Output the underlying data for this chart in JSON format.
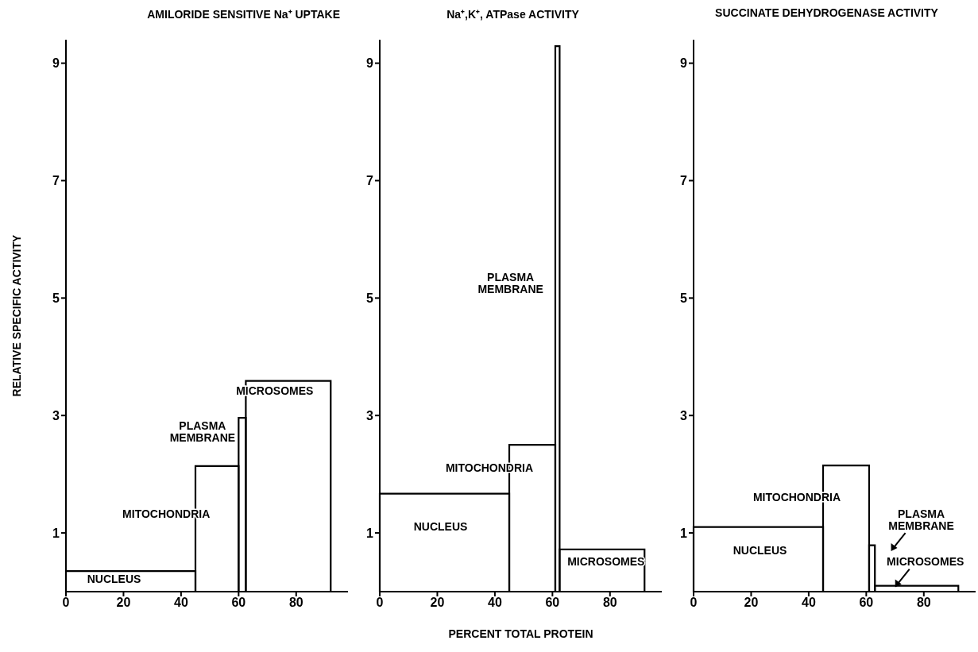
{
  "chart_data": [
    {
      "type": "histogram",
      "title": "AMILORIDE SENSITIVE Na⁺ UPTAKE",
      "ylabel": "RELATIVE SPECIFIC ACTIVITY",
      "bins": [
        0,
        45,
        60,
        62.5,
        92
      ],
      "values": [
        0.35,
        2.14,
        2.96,
        3.59
      ],
      "color": "#000000",
      "xlim": [
        0,
        98
      ],
      "xticks": [
        0,
        20,
        40,
        60,
        80
      ],
      "ylim": [
        0,
        9.4
      ],
      "yticks": [
        1,
        3,
        5,
        7,
        9
      ],
      "annotations": [
        "NUCLEUS",
        "MITOCHONDRIA",
        "PLASMA\nMEMBRANE",
        "MICROSOMES"
      ]
    },
    {
      "type": "histogram",
      "title": "Na⁺,K⁺, ATPase ACTIVITY",
      "xlabel": "PERCENT TOTAL PROTEIN",
      "bins": [
        0,
        45,
        61,
        62.5,
        92
      ],
      "values": [
        1.67,
        2.5,
        9.29,
        0.72
      ],
      "color": "#000000",
      "xlim": [
        0,
        98
      ],
      "xticks": [
        0,
        20,
        40,
        60,
        80
      ],
      "ylim": [
        0,
        9.4
      ],
      "yticks": [
        1,
        3,
        5,
        7,
        9
      ],
      "annotations": [
        "NUCLEUS",
        "MITOCHONDRIA",
        "PLASMA\nMEMBRANE",
        "MICROSOMES"
      ]
    },
    {
      "type": "histogram",
      "title": "SUCCINATE DEHYDROGENASE ACTIVITY",
      "bins": [
        0,
        45,
        61,
        63,
        92
      ],
      "values": [
        1.1,
        2.15,
        0.79,
        0.1
      ],
      "color": "#000000",
      "xlim": [
        0,
        98
      ],
      "xticks": [
        0,
        20,
        40,
        60,
        80
      ],
      "ylim": [
        0,
        9.4
      ],
      "yticks": [
        1,
        3,
        5,
        7,
        9
      ],
      "annotations": [
        "NUCLEUS",
        "MITOCHONDRIA",
        "PLASMA\nMEMBRANE",
        "MICROSOMES"
      ]
    }
  ]
}
